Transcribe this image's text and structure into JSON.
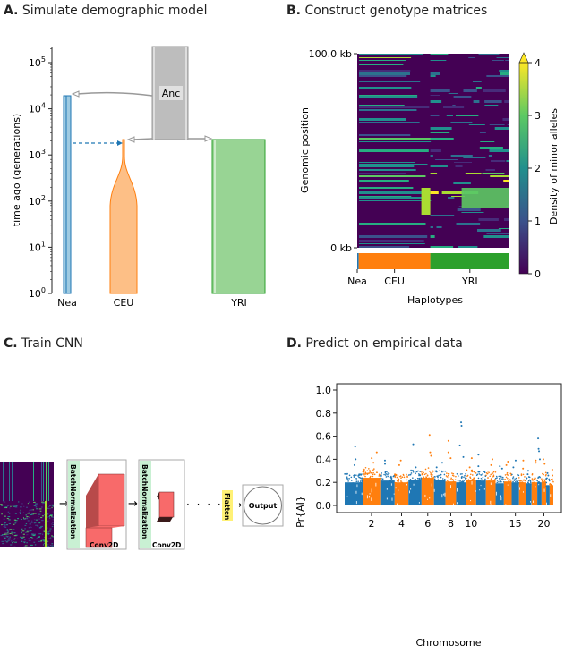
{
  "panels": {
    "a": {
      "letter": "A.",
      "title": "Simulate demographic model"
    },
    "b": {
      "letter": "B.",
      "title": "Construct genotype matrices"
    },
    "c": {
      "letter": "C.",
      "title": "Train CNN"
    },
    "d": {
      "letter": "D.",
      "title": "Predict on empirical data"
    }
  },
  "demography": {
    "ylabel": "time ago (generations)",
    "yticks": [
      "10^0",
      "10^1",
      "10^2",
      "10^3",
      "10^4",
      "10^5"
    ],
    "yscale": "log",
    "ylim": [
      1,
      200000
    ],
    "ancestor_label": "Anc",
    "populations": [
      {
        "name": "Nea",
        "color": "#1f77b4",
        "fill": "#9ecae1",
        "start_time": 18000
      },
      {
        "name": "CEU",
        "color": "#ff7f0e",
        "fill": "#fdbf86",
        "start_time": 2200
      },
      {
        "name": "YRI",
        "color": "#2ca02c",
        "fill": "#98d494",
        "start_time": 2200
      }
    ],
    "ancestor": {
      "color": "#bdbdbd",
      "time_range": [
        2200,
        200000
      ]
    },
    "migration": {
      "from": "Nea",
      "to": "CEU",
      "time": 1800,
      "style": "dashed"
    }
  },
  "genotype": {
    "ylabel": "Genomic position",
    "ytick_top": "100.0 kb",
    "ytick_bottom": "0 kb",
    "xlabel": "Haplotypes",
    "groups": [
      "Nea",
      "CEU",
      "YRI"
    ],
    "group_fractions": [
      0.01,
      0.47,
      0.52
    ],
    "group_colors": [
      "#1f77b4",
      "#ff7f0e",
      "#2ca02c"
    ],
    "colorbar": {
      "label": "Density of minor alleles",
      "ticks": [
        "0",
        "1",
        "2",
        "3",
        "4"
      ],
      "range": [
        0,
        4
      ],
      "extend": "max",
      "colormap": "viridis"
    }
  },
  "cnn": {
    "layers": [
      {
        "name": "BatchNormalization",
        "type": "norm"
      },
      {
        "name": "Conv2D",
        "type": "conv"
      },
      {
        "name": "BatchNormalization",
        "type": "norm"
      },
      {
        "name": "Conv2D",
        "type": "conv"
      },
      {
        "name": "Flatten",
        "type": "flatten"
      },
      {
        "name": "Output",
        "type": "output"
      }
    ],
    "norm_color": "#c9f0d3",
    "conv_color": "#f86a6a",
    "flatten_color": "#fff176"
  },
  "chart_data": {
    "type": "scatter",
    "title": "Predict on empirical data",
    "xlabel": "Chromosome",
    "ylabel": "Pr{AI}",
    "ylim": [
      0,
      1.0
    ],
    "yticks": [
      "0.0",
      "0.2",
      "0.4",
      "0.6",
      "0.8",
      "1.0"
    ],
    "xticks": [
      "2",
      "4",
      "6",
      "8",
      "10",
      "15",
      "20"
    ],
    "series_colors": [
      "#1f77b4",
      "#ff7f0e"
    ],
    "chromosomes": [
      {
        "chr": 1,
        "color": "blue",
        "bulk_max": 0.25,
        "top": [
          0.51,
          0.4,
          0.35
        ]
      },
      {
        "chr": 2,
        "color": "orange",
        "bulk_max": 0.3,
        "top": [
          0.46,
          0.41,
          0.37
        ]
      },
      {
        "chr": 3,
        "color": "blue",
        "bulk_max": 0.27,
        "top": [
          0.39,
          0.36
        ]
      },
      {
        "chr": 4,
        "color": "orange",
        "bulk_max": 0.25,
        "top": [
          0.39,
          0.35
        ]
      },
      {
        "chr": 5,
        "color": "blue",
        "bulk_max": 0.28,
        "top": [
          0.53,
          0.33
        ]
      },
      {
        "chr": 6,
        "color": "orange",
        "bulk_max": 0.3,
        "top": [
          0.61,
          0.46,
          0.43
        ]
      },
      {
        "chr": 7,
        "color": "blue",
        "bulk_max": 0.28,
        "top": [
          0.37,
          0.33
        ]
      },
      {
        "chr": 8,
        "color": "orange",
        "bulk_max": 0.26,
        "top": [
          0.56,
          0.46,
          0.41
        ]
      },
      {
        "chr": 9,
        "color": "blue",
        "bulk_max": 0.25,
        "top": [
          0.72,
          0.69,
          0.52,
          0.42
        ]
      },
      {
        "chr": 10,
        "color": "orange",
        "bulk_max": 0.28,
        "top": [
          0.41,
          0.33
        ]
      },
      {
        "chr": 11,
        "color": "blue",
        "bulk_max": 0.27,
        "top": [
          0.44,
          0.34
        ]
      },
      {
        "chr": 12,
        "color": "orange",
        "bulk_max": 0.27,
        "top": [
          0.4,
          0.35
        ]
      },
      {
        "chr": 13,
        "color": "blue",
        "bulk_max": 0.24,
        "top": [
          0.34,
          0.32
        ]
      },
      {
        "chr": 14,
        "color": "orange",
        "bulk_max": 0.26,
        "top": [
          0.38,
          0.35
        ]
      },
      {
        "chr": 15,
        "color": "blue",
        "bulk_max": 0.25,
        "top": [
          0.39,
          0.33
        ]
      },
      {
        "chr": 16,
        "color": "orange",
        "bulk_max": 0.25,
        "top": [
          0.39,
          0.32
        ]
      },
      {
        "chr": 17,
        "color": "blue",
        "bulk_max": 0.24,
        "top": [
          0.3,
          0.27
        ]
      },
      {
        "chr": 18,
        "color": "orange",
        "bulk_max": 0.25,
        "top": [
          0.39,
          0.37
        ]
      },
      {
        "chr": 19,
        "color": "blue",
        "bulk_max": 0.25,
        "top": [
          0.58,
          0.49,
          0.47,
          0.4
        ]
      },
      {
        "chr": 20,
        "color": "orange",
        "bulk_max": 0.26,
        "top": [
          0.4,
          0.36
        ]
      },
      {
        "chr": 21,
        "color": "blue",
        "bulk_max": 0.22,
        "top": [
          0.28,
          0.26
        ]
      },
      {
        "chr": 22,
        "color": "orange",
        "bulk_max": 0.22,
        "top": [
          0.31,
          0.26
        ]
      }
    ]
  }
}
